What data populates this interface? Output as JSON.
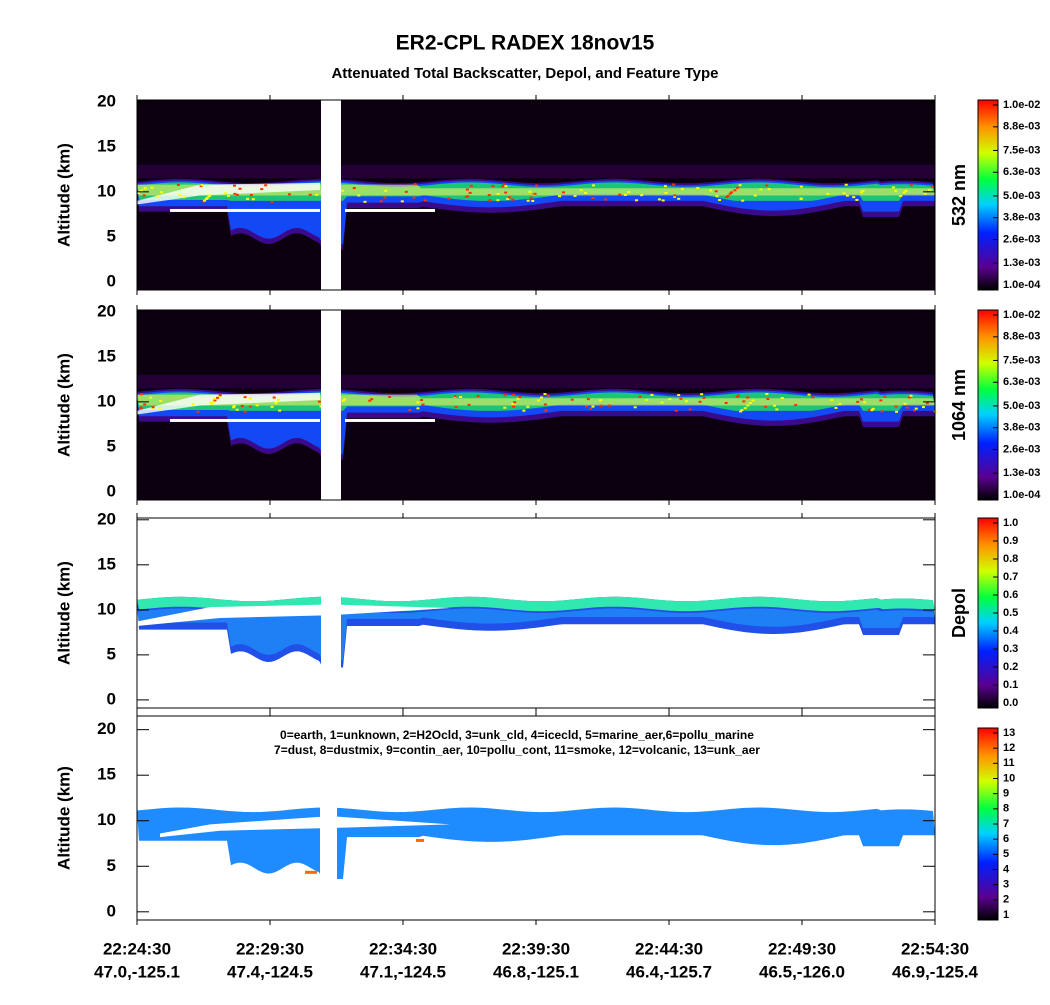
{
  "title": "ER2-CPL RADEX 18nov15",
  "subtitle": "Attenuated Total Backscatter, Depol, and Feature Type",
  "x_axis": {
    "times": [
      "22:24:30",
      "22:29:30",
      "22:34:30",
      "22:39:30",
      "22:44:30",
      "22:49:30",
      "22:54:30"
    ],
    "coords": [
      "47.0,-125.1",
      "47.4,-124.5",
      "47.1,-124.5",
      "46.8,-125.1",
      "46.4,-125.7",
      "46.5,-126.0",
      "46.9,-125.4"
    ]
  },
  "chart_data": [
    {
      "type": "heatmap",
      "product": "532",
      "ylabel": "Altitude (km)",
      "side_label": "532 nm",
      "ylim": [
        -0.9,
        20.2
      ],
      "yticks": [
        0,
        5,
        10,
        15,
        20
      ],
      "clim": [
        0.0001,
        0.01
      ],
      "cticks": [
        {
          "value": 0.01,
          "label": "1.0e-02"
        },
        {
          "value": 0.0088,
          "label": "8.8e-03"
        },
        {
          "value": 0.0075,
          "label": "7.5e-03"
        },
        {
          "value": 0.0063,
          "label": "6.3e-03"
        },
        {
          "value": 0.005,
          "label": "5.0e-03"
        },
        {
          "value": 0.0038,
          "label": "3.8e-03"
        },
        {
          "value": 0.0026,
          "label": "2.6e-03"
        },
        {
          "value": 0.0013,
          "label": "1.3e-03"
        },
        {
          "value": 0.0001,
          "label": "1.0e-04"
        }
      ]
    },
    {
      "type": "heatmap",
      "product": "1064",
      "ylabel": "Altitude (km)",
      "side_label": "1064 nm",
      "ylim": [
        -0.9,
        20.2
      ],
      "yticks": [
        0,
        5,
        10,
        15,
        20
      ],
      "clim": [
        0.0001,
        0.01
      ],
      "cticks": [
        {
          "value": 0.01,
          "label": "1.0e-02"
        },
        {
          "value": 0.0088,
          "label": "8.8e-03"
        },
        {
          "value": 0.0075,
          "label": "7.5e-03"
        },
        {
          "value": 0.0063,
          "label": "6.3e-03"
        },
        {
          "value": 0.005,
          "label": "5.0e-03"
        },
        {
          "value": 0.0038,
          "label": "3.8e-03"
        },
        {
          "value": 0.0026,
          "label": "2.6e-03"
        },
        {
          "value": 0.0013,
          "label": "1.3e-03"
        },
        {
          "value": 0.0001,
          "label": "1.0e-04"
        }
      ]
    },
    {
      "type": "heatmap",
      "product": "depol",
      "ylabel": "Altitude (km)",
      "side_label": "Depol",
      "ylim": [
        -0.9,
        20.2
      ],
      "yticks": [
        0,
        5,
        10,
        15,
        20
      ],
      "clim": [
        0,
        1
      ],
      "cticks": [
        {
          "value": 1,
          "label": "1.0"
        },
        {
          "value": 0.9,
          "label": "0.9"
        },
        {
          "value": 0.8,
          "label": "0.8"
        },
        {
          "value": 0.7,
          "label": "0.7"
        },
        {
          "value": 0.6,
          "label": "0.6"
        },
        {
          "value": 0.5,
          "label": "0.5"
        },
        {
          "value": 0.4,
          "label": "0.4"
        },
        {
          "value": 0.3,
          "label": "0.3"
        },
        {
          "value": 0.2,
          "label": "0.2"
        },
        {
          "value": 0.1,
          "label": "0.1"
        },
        {
          "value": 0,
          "label": "0.0"
        }
      ]
    },
    {
      "type": "heatmap",
      "product": "feature",
      "ylabel": "Altitude (km)",
      "ylim": [
        -0.9,
        21.5
      ],
      "yticks": [
        0,
        5,
        10,
        15,
        20
      ],
      "legend_lines": [
        "0=earth, 1=unknown, 2=H2Ocld, 3=unk_cld, 4=icecld, 5=marine_aer,6=pollu_marine",
        "7=dust, 8=dustmix, 9=contin_aer, 10=pollu_cont, 11=smoke, 12=volcanic, 13=unk_aer"
      ],
      "clim": [
        1,
        13
      ],
      "cticks": [
        13,
        12,
        11,
        10,
        9,
        8,
        7,
        6,
        5,
        4,
        3,
        2,
        1
      ]
    }
  ]
}
